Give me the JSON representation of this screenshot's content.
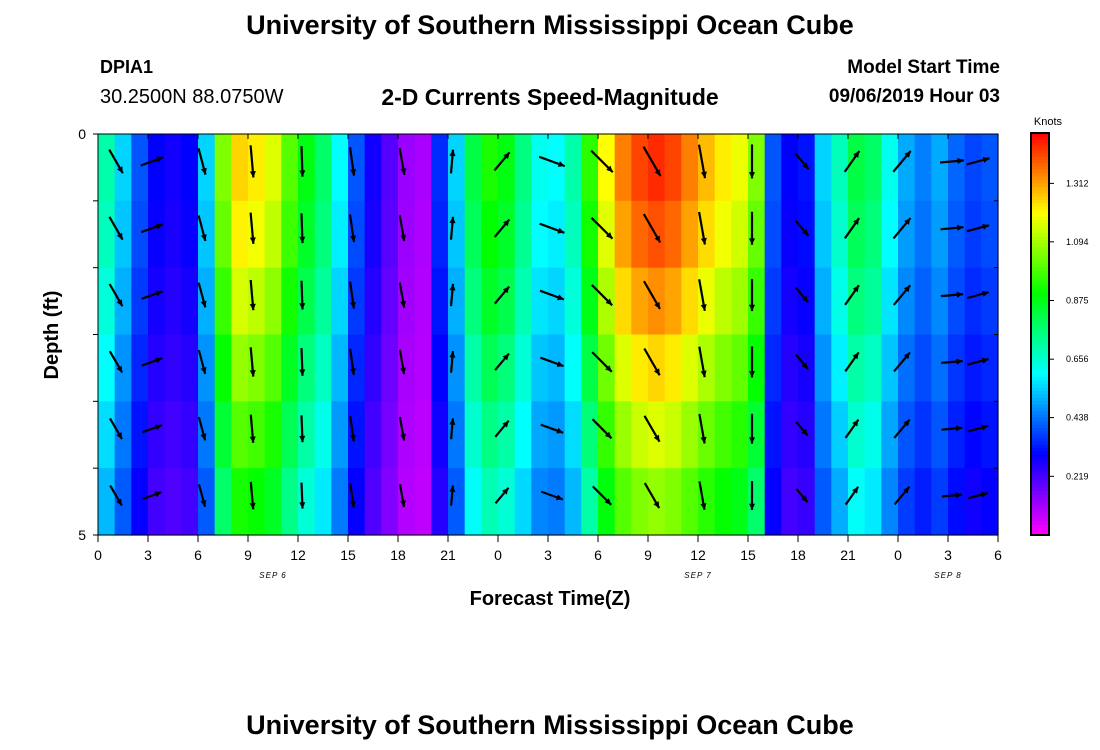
{
  "header": {
    "title": "University of Southern Mississippi Ocean Cube",
    "station_id": "DPIA1",
    "coordinates": "30.2500N 88.0750W",
    "subtitle": "2-D Currents Speed-Magnitude",
    "model_start_label": "Model Start Time",
    "model_start_value": "09/06/2019 Hour 03"
  },
  "footer": {
    "title": "University of Southern Mississippi Ocean Cube"
  },
  "chart_data": {
    "type": "heatmap",
    "title": "2-D Currents Speed-Magnitude",
    "xlabel": "Forecast Time(Z)",
    "ylabel": "Depth (ft)",
    "x_tick_labels": [
      "0",
      "3",
      "6",
      "9",
      "12",
      "15",
      "18",
      "21",
      "0",
      "3",
      "6",
      "9",
      "12",
      "15",
      "18",
      "21",
      "0",
      "3",
      "6"
    ],
    "x_hours_since_start": [
      0,
      3,
      6,
      9,
      12,
      15,
      18,
      21,
      24,
      27,
      30,
      33,
      36,
      39,
      42,
      45,
      48,
      51,
      54
    ],
    "xlim": [
      0,
      54
    ],
    "date_labels": [
      {
        "label": "SEP 6",
        "hour": 10.5
      },
      {
        "label": "SEP 7",
        "hour": 36
      },
      {
        "label": "SEP 8",
        "hour": 51
      }
    ],
    "y_tick_labels": [
      "0",
      "5"
    ],
    "ylim": [
      0,
      5
    ],
    "y_inverted": true,
    "depth_levels": 5,
    "colorbar": {
      "label": "Knots",
      "ticks": [
        "1.312",
        "1.094",
        "0.875",
        "0.656",
        "0.438",
        "0.219"
      ],
      "tick_values": [
        1.312,
        1.094,
        0.875,
        0.656,
        0.438,
        0.219
      ],
      "range": [
        0,
        1.5
      ]
    },
    "speed_profile": {
      "hours": [
        0,
        1,
        2,
        3,
        4,
        5,
        6,
        7,
        8,
        9,
        10,
        11,
        12,
        13,
        14,
        15,
        16,
        17,
        18,
        19,
        20,
        21,
        22,
        23,
        24,
        25,
        26,
        27,
        28,
        29,
        30,
        31,
        32,
        33,
        34,
        35,
        36,
        37,
        38,
        39,
        40,
        41,
        42,
        43,
        44,
        45,
        46,
        47,
        48,
        49,
        50,
        51,
        52,
        53,
        54
      ],
      "speed": [
        0.7,
        0.55,
        0.4,
        0.3,
        0.28,
        0.3,
        0.55,
        1.05,
        1.25,
        1.22,
        1.16,
        1.0,
        0.88,
        0.78,
        0.6,
        0.4,
        0.28,
        0.2,
        0.12,
        0.1,
        0.35,
        0.55,
        0.82,
        0.93,
        0.88,
        0.75,
        0.62,
        0.6,
        0.7,
        0.95,
        1.2,
        1.35,
        1.42,
        1.45,
        1.42,
        1.35,
        1.28,
        1.22,
        1.18,
        1.05,
        0.4,
        0.3,
        0.32,
        0.55,
        0.68,
        0.82,
        0.78,
        0.62,
        0.5,
        0.45,
        0.5,
        0.42,
        0.38,
        0.4,
        0.45
      ]
    },
    "depth_factors": [
      1.0,
      0.97,
      0.92,
      0.86,
      0.8,
      0.74
    ],
    "vectors": {
      "hours": [
        0,
        3,
        6,
        9,
        12,
        15,
        18,
        21,
        24,
        27,
        30,
        33,
        36,
        39,
        42,
        45,
        48,
        51,
        54
      ],
      "direction_deg": [
        150,
        70,
        165,
        175,
        178,
        172,
        170,
        5,
        40,
        110,
        135,
        150,
        170,
        180,
        140,
        35,
        40,
        85,
        75
      ],
      "relative_length": [
        0.8,
        0.7,
        0.8,
        0.95,
        0.9,
        0.85,
        0.8,
        0.7,
        0.7,
        0.8,
        0.9,
        1.0,
        1.0,
        1.0,
        0.6,
        0.75,
        0.8,
        0.7,
        0.7
      ]
    }
  }
}
